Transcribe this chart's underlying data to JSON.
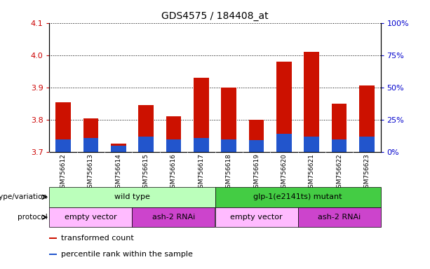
{
  "title": "GDS4575 / 184408_at",
  "samples": [
    "GSM756612",
    "GSM756613",
    "GSM756614",
    "GSM756615",
    "GSM756616",
    "GSM756617",
    "GSM756618",
    "GSM756619",
    "GSM756620",
    "GSM756621",
    "GSM756622",
    "GSM756623"
  ],
  "transformed_count": [
    3.855,
    3.805,
    3.725,
    3.845,
    3.81,
    3.93,
    3.9,
    3.8,
    3.98,
    4.01,
    3.85,
    3.905
  ],
  "percentile_rank_pct": [
    10,
    11,
    5,
    12,
    10,
    11,
    10,
    9,
    14,
    12,
    10,
    12
  ],
  "ymin": 3.7,
  "ymax": 4.1,
  "yticks_left": [
    3.7,
    3.8,
    3.9,
    4.0,
    4.1
  ],
  "yticks_right_pct": [
    0,
    25,
    50,
    75,
    100
  ],
  "bar_color": "#cc1100",
  "percentile_color": "#2255cc",
  "genotype_groups": [
    {
      "label": "wild type",
      "start": 0,
      "end": 6,
      "color": "#bbffbb"
    },
    {
      "label": "glp-1(e2141ts) mutant",
      "start": 6,
      "end": 12,
      "color": "#44cc44"
    }
  ],
  "protocol_groups": [
    {
      "label": "empty vector",
      "start": 0,
      "end": 3,
      "color": "#ffbbff"
    },
    {
      "label": "ash-2 RNAi",
      "start": 3,
      "end": 6,
      "color": "#cc44cc"
    },
    {
      "label": "empty vector",
      "start": 6,
      "end": 9,
      "color": "#ffbbff"
    },
    {
      "label": "ash-2 RNAi",
      "start": 9,
      "end": 12,
      "color": "#cc44cc"
    }
  ],
  "legend_items": [
    {
      "label": "transformed count",
      "color": "#cc1100"
    },
    {
      "label": "percentile rank within the sample",
      "color": "#2255cc"
    }
  ],
  "sample_bg_color": "#cccccc",
  "tick_label_color_left": "#cc0000",
  "tick_label_color_right": "#0000cc"
}
